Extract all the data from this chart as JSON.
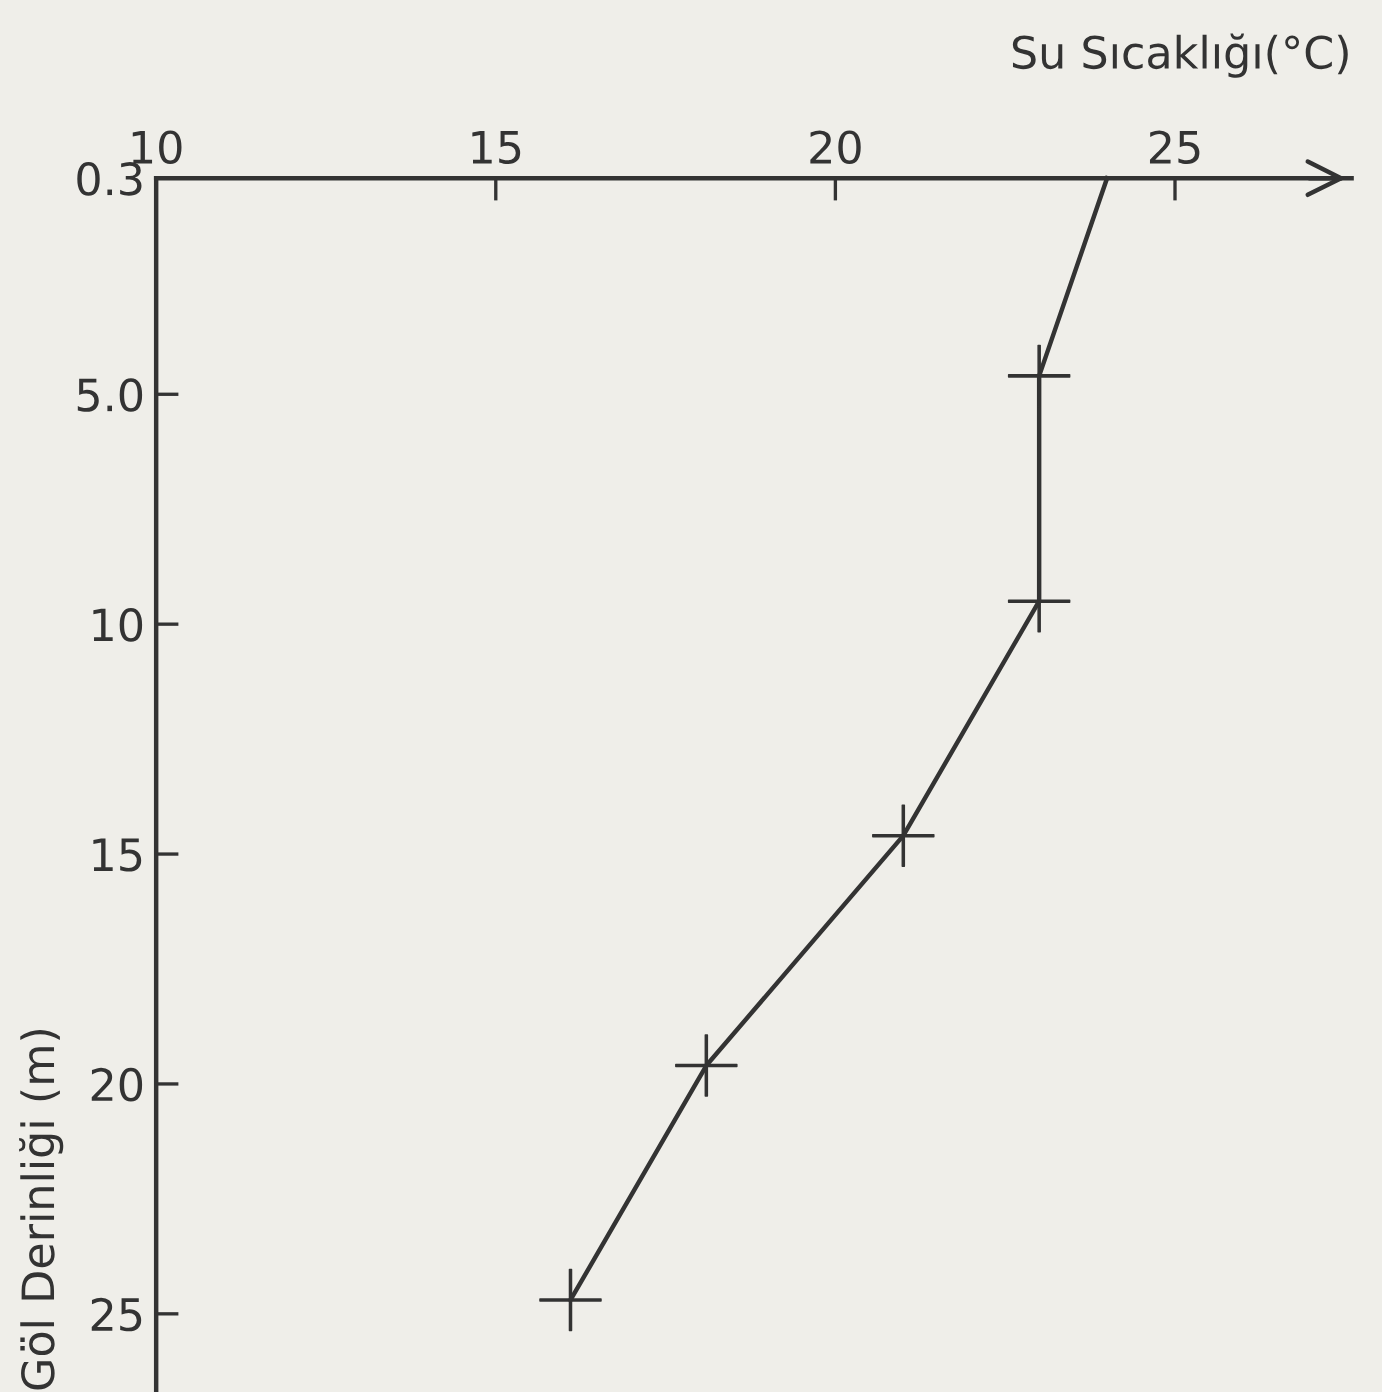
{
  "chart_data": {
    "type": "line",
    "xlabel": "Su Sıcaklığı(°C)",
    "ylabel": "Göl Derinliği (m)",
    "x": [
      24.0,
      23.0,
      23.0,
      21.0,
      18.1,
      16.1
    ],
    "series": [
      {
        "color": "#333333",
        "marker": "none",
        "values": [
          0.3,
          4.6,
          9.5,
          14.6,
          19.6,
          24.7
        ]
      },
      {
        "type": "scatter",
        "color": "#333333",
        "marker": "cross",
        "x": [
          23.0,
          23.0,
          21.0,
          18.1,
          16.1
        ],
        "values": [
          4.6,
          9.5,
          14.6,
          19.6,
          24.7
        ]
      }
    ],
    "xlim": [
      10,
      27.6
    ],
    "xticks": [
      10,
      15,
      20,
      25
    ],
    "ylim": [
      26.7,
      0.3
    ],
    "yticks": [
      0.3,
      {
        "value": 5,
        "label": "5.0"
      },
      10,
      15,
      20,
      25
    ],
    "grid": false,
    "legend": false
  }
}
